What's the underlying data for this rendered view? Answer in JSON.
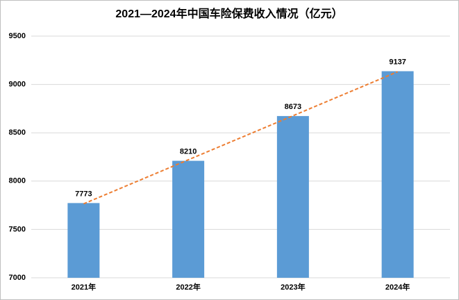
{
  "chart_data": {
    "type": "bar",
    "title": "2021—2024年中国车险保费收入情况（亿元）",
    "categories": [
      "2021年",
      "2022年",
      "2023年",
      "2024年"
    ],
    "values": [
      7773,
      8210,
      8673,
      9137
    ],
    "color": "#5b9bd5",
    "ylim": [
      7000,
      9500
    ],
    "yticks": [
      7000,
      7500,
      8000,
      8500,
      9000,
      9500
    ],
    "grid": true,
    "trendline": true,
    "trendline_color": "#ed7d31"
  }
}
